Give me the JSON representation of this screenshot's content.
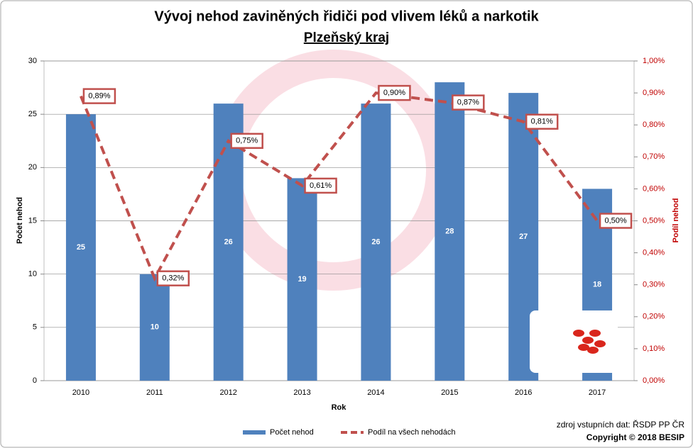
{
  "chart_data": {
    "type": "bar",
    "title": "Vývoj nehod zaviněných řidiči pod vlivem léků a narkotik",
    "subtitle": "Plzeňský kraj",
    "x_label": "Rok",
    "y_label": "Počet nehod",
    "y2_label": "Podíl nehod",
    "categories": [
      "2010",
      "2011",
      "2012",
      "2013",
      "2014",
      "2015",
      "2016",
      "2017"
    ],
    "series": [
      {
        "name": "Počet nehod",
        "type": "bar",
        "color": "#4f81bd",
        "values": [
          25,
          10,
          26,
          19,
          26,
          28,
          27,
          18
        ]
      },
      {
        "name": "Podíl na všech nehodách",
        "type": "line",
        "axis": "y2",
        "color": "#c0504d",
        "dashed": true,
        "values": [
          0.89,
          0.32,
          0.75,
          0.61,
          0.9,
          0.87,
          0.81,
          0.5
        ],
        "value_labels": [
          "0,89%",
          "0,32%",
          "0,75%",
          "0,61%",
          "0,90%",
          "0,87%",
          "0,81%",
          "0,50%"
        ]
      }
    ],
    "ylim": [
      0,
      30
    ],
    "yticks": [
      0,
      5,
      10,
      15,
      20,
      25,
      30
    ],
    "y2lim": [
      0,
      1
    ],
    "y2ticks": [
      {
        "value": 0,
        "label": "0,00%"
      },
      {
        "value": 0.1,
        "label": "0,10%"
      },
      {
        "value": 0.2,
        "label": "0,20%"
      },
      {
        "value": 0.3,
        "label": "0,30%"
      },
      {
        "value": 0.4,
        "label": "0,40%"
      },
      {
        "value": 0.5,
        "label": "0,50%"
      },
      {
        "value": 0.6,
        "label": "0,60%"
      },
      {
        "value": 0.7,
        "label": "0,70%"
      },
      {
        "value": 0.8,
        "label": "0,80%"
      },
      {
        "value": 0.9,
        "label": "0,90%"
      },
      {
        "value": 1,
        "label": "1,00%"
      }
    ],
    "grid": true,
    "legend": "bottom",
    "source": "zdroj vstupních dat: ŘSDP PP ČR",
    "copyright": "Copyright © 2018 BESIP"
  }
}
